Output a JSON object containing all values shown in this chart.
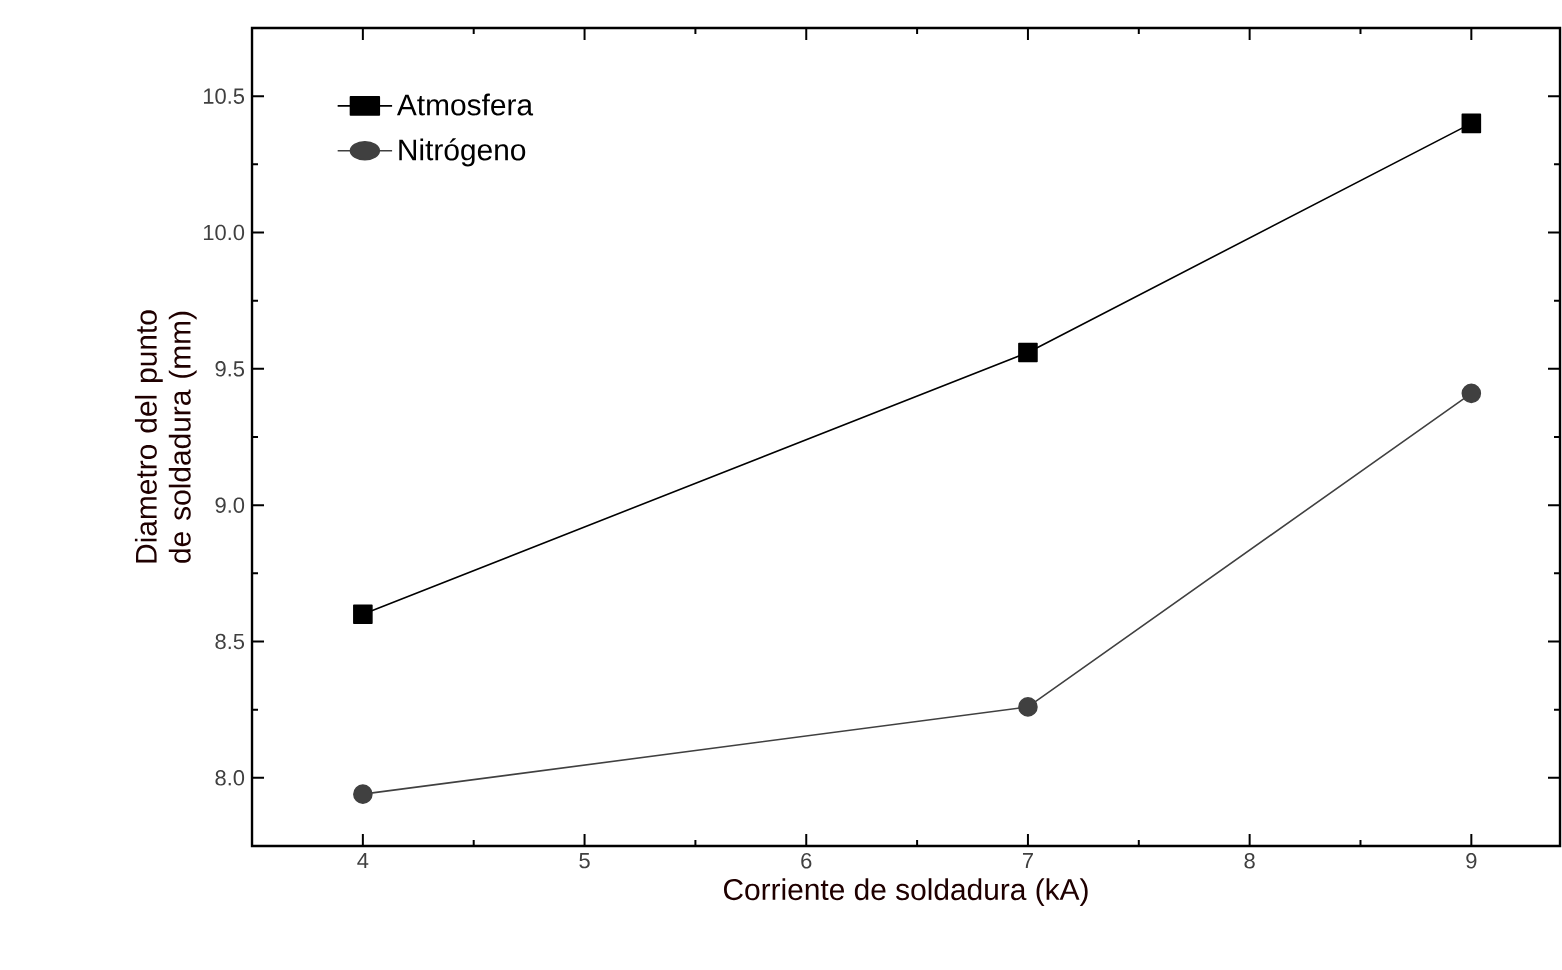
{
  "chart_data": {
    "type": "line",
    "xlabel": "Corriente de soldadura (kA)",
    "ylabel": "Diametro del punto de soldadura (mm)",
    "x": [
      4,
      7,
      9
    ],
    "series": [
      {
        "name": "Atmosfera",
        "color": "#000000",
        "marker": "square",
        "values": [
          8.6,
          9.56,
          10.4
        ]
      },
      {
        "name": "Nitrógeno",
        "color": "#404040",
        "marker": "circle",
        "values": [
          7.94,
          8.26,
          9.41
        ]
      }
    ],
    "xlim": [
      3.5,
      9.4
    ],
    "ylim": [
      7.75,
      10.75
    ],
    "xticks": [
      4,
      5,
      6,
      7,
      8,
      9
    ],
    "yticks": [
      {
        "value": 8,
        "label": "8.0"
      },
      {
        "value": 8.5,
        "label": "8.5"
      },
      {
        "value": 9,
        "label": "9.0"
      },
      {
        "value": 9.5,
        "label": "9.5"
      },
      {
        "value": 10,
        "label": "10.0"
      },
      {
        "value": 10.5,
        "label": "10.5"
      }
    ],
    "legend": "top left",
    "grid": false,
    "line_style": "solid"
  }
}
